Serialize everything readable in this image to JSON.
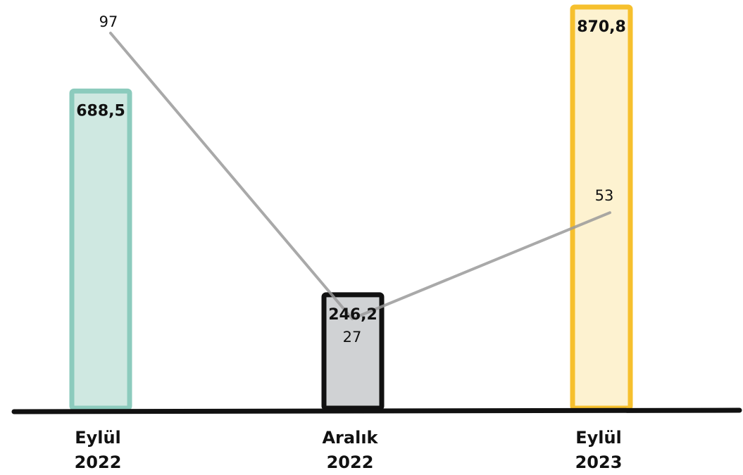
{
  "chart_data": {
    "type": "bar",
    "categories": [
      [
        "Eylül",
        "2022"
      ],
      [
        "Aralık",
        "2022"
      ],
      [
        "Eylül",
        "2023"
      ]
    ],
    "bar_values": [
      688.5,
      246.2,
      870.8
    ],
    "bar_labels": [
      "688,5",
      "246,2",
      "870,8"
    ],
    "line_values": [
      97,
      27,
      53
    ],
    "line_labels": [
      "97",
      "27",
      "53"
    ],
    "bar_fill_colors": [
      "#cfe8e1",
      "#d0d2d4",
      "#fdf2d0"
    ],
    "bar_stroke_colors": [
      "#8ccbbd",
      "#111111",
      "#f6c02d"
    ],
    "line_color": "#9a9a9a",
    "baseline_color": "#111111",
    "grid": false,
    "legend": "none"
  }
}
